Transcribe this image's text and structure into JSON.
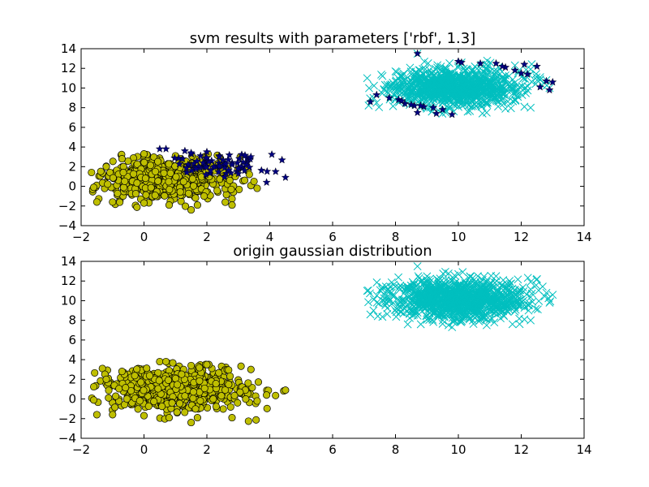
{
  "chart_data": [
    {
      "type": "scatter",
      "title": "svm results with parameters ['rbf', 1.3]",
      "xlabel": "",
      "ylabel": "",
      "xlim": [
        -2,
        14
      ],
      "ylim": [
        -4,
        14
      ],
      "xticks": [
        -2,
        0,
        2,
        4,
        6,
        8,
        10,
        12,
        14
      ],
      "yticks": [
        -4,
        -2,
        0,
        2,
        4,
        6,
        8,
        10,
        12,
        14
      ],
      "xtick_labels": [
        "−2",
        "0",
        "2",
        "4",
        "6",
        "8",
        "10",
        "12",
        "14"
      ],
      "ytick_labels": [
        "−4",
        "−2",
        "0",
        "2",
        "4",
        "6",
        "8",
        "10",
        "12",
        "14"
      ],
      "grid": false,
      "series": [
        {
          "marker": "circle",
          "color": "#bfbf00",
          "distribution": {
            "center": [
              0.6,
              0.8
            ],
            "std": [
              1.05,
              1.05
            ],
            "count": 620,
            "xrange": [
              -1.7,
              3.6
            ],
            "yrange": [
              -2.5,
              3.3
            ]
          },
          "points": [
            [
              -1.6,
              -0.1
            ],
            [
              -1.5,
              -1.6
            ],
            [
              -1.0,
              -1.6
            ],
            [
              0.0,
              -1.7
            ],
            [
              0.8,
              -1.9
            ],
            [
              1.5,
              -2.4
            ],
            [
              1.7,
              -1.9
            ],
            [
              2.8,
              -1.9
            ],
            [
              3.6,
              -0.2
            ],
            [
              3.5,
              0.5
            ],
            [
              -0.7,
              2.8
            ],
            [
              0.0,
              3.3
            ],
            [
              1.0,
              3.1
            ],
            [
              -1.2,
              2.0
            ],
            [
              2.0,
              2.4
            ]
          ]
        },
        {
          "marker": "star",
          "color": "#000080",
          "distribution": {
            "center": [
              2.4,
              2.2
            ],
            "std": [
              0.8,
              0.55
            ],
            "count": 70,
            "xrange": [
              0.5,
              4.5
            ],
            "yrange": [
              0.3,
              4.0
            ]
          },
          "points": [
            [
              4.5,
              0.9
            ],
            [
              3.9,
              0.4
            ],
            [
              3.4,
              3.0
            ],
            [
              0.5,
              3.8
            ],
            [
              0.7,
              3.8
            ],
            [
              1.5,
              3.4
            ],
            [
              2.0,
              3.5
            ],
            [
              2.4,
              3.0
            ],
            [
              2.8,
              2.2
            ],
            [
              3.0,
              1.8
            ],
            [
              3.2,
              1.6
            ],
            [
              1.8,
              3.1
            ],
            [
              2.6,
              2.3
            ],
            [
              1.3,
              3.6
            ]
          ]
        },
        {
          "marker": "x",
          "color": "#00bfbf",
          "distribution": {
            "center": [
              9.9,
              10.1
            ],
            "std": [
              1.05,
              0.95
            ],
            "count": 1000,
            "xrange": [
              7.1,
              12.9
            ],
            "yrange": [
              7.3,
              12.8
            ]
          },
          "points": [
            [
              7.1,
              11.0
            ],
            [
              7.3,
              9.0
            ],
            [
              7.4,
              8.5
            ],
            [
              12.8,
              10.8
            ],
            [
              12.9,
              10.0
            ],
            [
              12.1,
              8.1
            ],
            [
              12.3,
              8.0
            ],
            [
              10.9,
              7.5
            ],
            [
              11.5,
              7.9
            ],
            [
              9.6,
              7.5
            ],
            [
              8.7,
              13.5
            ],
            [
              10.1,
              12.6
            ],
            [
              12.3,
              11.9
            ],
            [
              11.8,
              12.3
            ],
            [
              12.6,
              11.1
            ],
            [
              8.0,
              11.7
            ],
            [
              9.0,
              7.9
            ]
          ]
        },
        {
          "marker": "star",
          "color": "#000080",
          "distribution": {
            "center": [
              10.0,
              10.0
            ],
            "std": [
              1.5,
              1.5
            ],
            "count": 0,
            "xrange": [
              7.1,
              12.9
            ],
            "yrange": [
              7.3,
              13.5
            ]
          },
          "points": [
            [
              8.7,
              13.5
            ],
            [
              10.0,
              12.7
            ],
            [
              10.1,
              12.6
            ],
            [
              10.7,
              12.5
            ],
            [
              11.2,
              12.5
            ],
            [
              11.5,
              12.1
            ],
            [
              11.8,
              11.8
            ],
            [
              12.0,
              11.5
            ],
            [
              12.2,
              11.4
            ],
            [
              12.5,
              12.2
            ],
            [
              12.8,
              10.7
            ],
            [
              13.0,
              10.6
            ],
            [
              12.9,
              9.8
            ],
            [
              12.6,
              10.1
            ],
            [
              12.1,
              12.4
            ],
            [
              11.4,
              12.2
            ],
            [
              7.2,
              8.6
            ],
            [
              7.4,
              9.3
            ],
            [
              7.8,
              9.0
            ],
            [
              8.1,
              8.8
            ],
            [
              8.3,
              8.4
            ],
            [
              8.6,
              8.2
            ],
            [
              8.7,
              7.5
            ],
            [
              8.9,
              8.1
            ],
            [
              9.2,
              8.0
            ],
            [
              9.5,
              7.8
            ],
            [
              9.8,
              7.3
            ],
            [
              9.3,
              7.4
            ],
            [
              8.5,
              8.3
            ],
            [
              8.8,
              8.2
            ],
            [
              8.2,
              8.7
            ]
          ]
        }
      ]
    },
    {
      "type": "scatter",
      "title": "origin gaussian distribution",
      "xlabel": "",
      "ylabel": "",
      "xlim": [
        -2,
        14
      ],
      "ylim": [
        -4,
        14
      ],
      "xticks": [
        -2,
        0,
        2,
        4,
        6,
        8,
        10,
        12,
        14
      ],
      "yticks": [
        -4,
        -2,
        0,
        2,
        4,
        6,
        8,
        10,
        12,
        14
      ],
      "xtick_labels": [
        "−2",
        "0",
        "2",
        "4",
        "6",
        "8",
        "10",
        "12",
        "14"
      ],
      "ytick_labels": [
        "−4",
        "−2",
        "0",
        "2",
        "4",
        "6",
        "8",
        "10",
        "12",
        "14"
      ],
      "grid": false,
      "series": [
        {
          "marker": "circle",
          "color": "#bfbf00",
          "distribution": {
            "center": [
              1.0,
              1.0
            ],
            "std": [
              1.1,
              1.1
            ],
            "count": 680,
            "xrange": [
              -1.7,
              4.5
            ],
            "yrange": [
              -2.5,
              3.9
            ]
          },
          "points": [
            [
              -1.6,
              -0.1
            ],
            [
              -1.5,
              -1.6
            ],
            [
              -1.0,
              -1.6
            ],
            [
              0.0,
              -1.7
            ],
            [
              0.8,
              -1.9
            ],
            [
              1.5,
              -2.4
            ],
            [
              1.7,
              -1.9
            ],
            [
              2.8,
              -1.9
            ],
            [
              3.6,
              -0.2
            ],
            [
              3.9,
              0.4
            ],
            [
              4.5,
              0.9
            ],
            [
              3.4,
              3.0
            ],
            [
              0.5,
              3.8
            ],
            [
              0.7,
              3.8
            ],
            [
              2.0,
              3.5
            ],
            [
              -0.7,
              2.8
            ],
            [
              1.5,
              3.4
            ],
            [
              -1.2,
              2.0
            ]
          ]
        },
        {
          "marker": "x",
          "color": "#00bfbf",
          "distribution": {
            "center": [
              10.0,
              10.1
            ],
            "std": [
              1.1,
              1.0
            ],
            "count": 1100,
            "xrange": [
              7.1,
              13.0
            ],
            "yrange": [
              7.3,
              13.5
            ]
          },
          "points": [
            [
              8.7,
              13.5
            ],
            [
              7.1,
              11.0
            ],
            [
              7.3,
              9.0
            ],
            [
              7.2,
              8.6
            ],
            [
              12.8,
              10.8
            ],
            [
              13.0,
              10.6
            ],
            [
              12.9,
              9.8
            ],
            [
              12.1,
              8.1
            ],
            [
              12.3,
              8.0
            ],
            [
              10.9,
              7.5
            ],
            [
              9.8,
              7.3
            ],
            [
              10.0,
              12.7
            ],
            [
              12.3,
              11.9
            ],
            [
              12.5,
              12.2
            ],
            [
              11.2,
              12.5
            ]
          ]
        }
      ]
    }
  ]
}
